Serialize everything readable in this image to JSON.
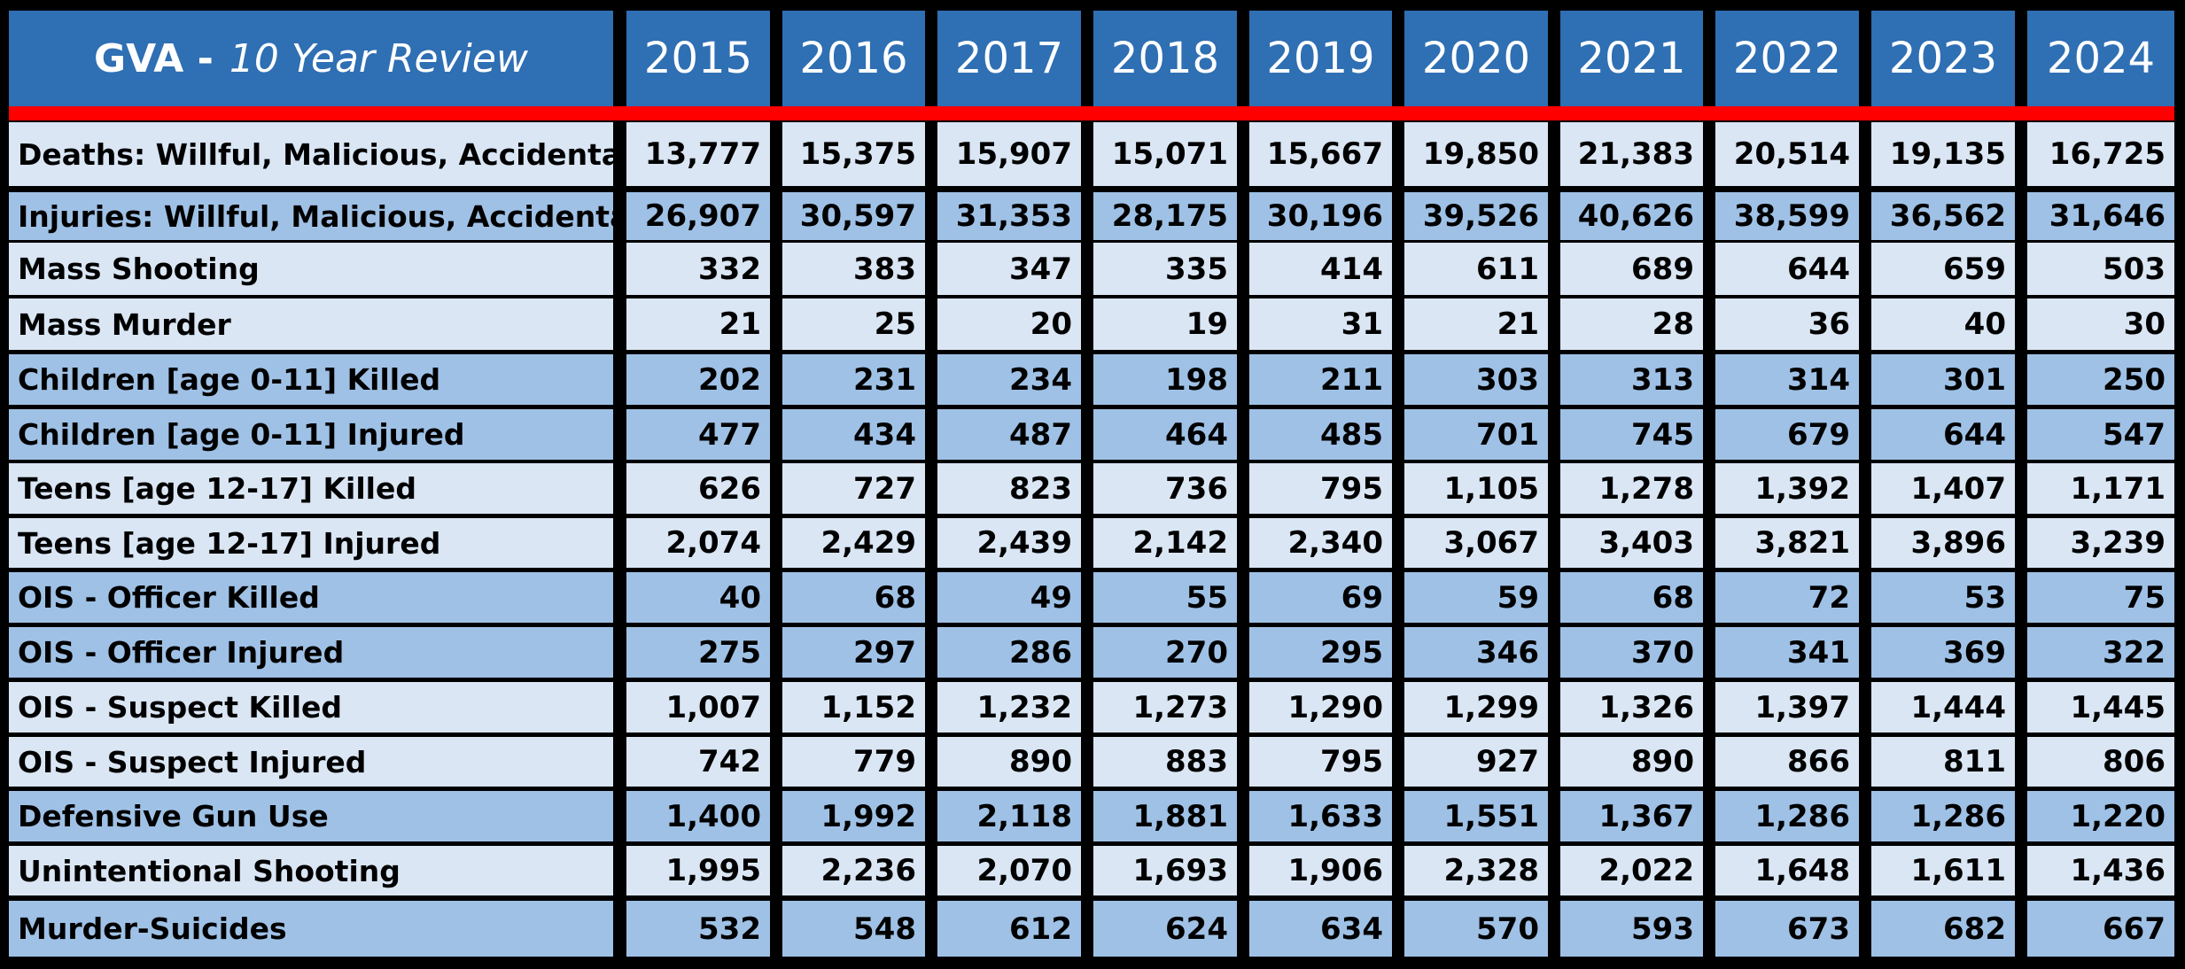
{
  "chart_data": {
    "type": "table",
    "title_bold": "GVA -",
    "title_italic": "10 Year Review",
    "columns": [
      "2015",
      "2016",
      "2017",
      "2018",
      "2019",
      "2020",
      "2021",
      "2022",
      "2023",
      "2024"
    ],
    "rows": [
      {
        "label": "Deaths:  Willful, Malicious, Accidental",
        "shade": "light",
        "values": [
          "13,777",
          "15,375",
          "15,907",
          "15,071",
          "15,667",
          "19,850",
          "21,383",
          "20,514",
          "19,135",
          "16,725"
        ]
      },
      {
        "label": "Injuries: Willful, Malicious, Accidental",
        "shade": "dark",
        "values": [
          "26,907",
          "30,597",
          "31,353",
          "28,175",
          "30,196",
          "39,526",
          "40,626",
          "38,599",
          "36,562",
          "31,646"
        ]
      },
      {
        "label": "Mass Shooting",
        "shade": "light",
        "values": [
          "332",
          "383",
          "347",
          "335",
          "414",
          "611",
          "689",
          "644",
          "659",
          "503"
        ]
      },
      {
        "label": "Mass Murder",
        "shade": "light",
        "values": [
          "21",
          "25",
          "20",
          "19",
          "31",
          "21",
          "28",
          "36",
          "40",
          "30"
        ]
      },
      {
        "label": "Children [age 0-11] Killed",
        "shade": "dark",
        "values": [
          "202",
          "231",
          "234",
          "198",
          "211",
          "303",
          "313",
          "314",
          "301",
          "250"
        ]
      },
      {
        "label": "Children [age 0-11] Injured",
        "shade": "dark",
        "values": [
          "477",
          "434",
          "487",
          "464",
          "485",
          "701",
          "745",
          "679",
          "644",
          "547"
        ]
      },
      {
        "label": "Teens [age 12-17] Killed",
        "shade": "light",
        "values": [
          "626",
          "727",
          "823",
          "736",
          "795",
          "1,105",
          "1,278",
          "1,392",
          "1,407",
          "1,171"
        ]
      },
      {
        "label": "Teens [age 12-17] Injured",
        "shade": "light",
        "values": [
          "2,074",
          "2,429",
          "2,439",
          "2,142",
          "2,340",
          "3,067",
          "3,403",
          "3,821",
          "3,896",
          "3,239"
        ]
      },
      {
        "label": "OIS - Officer Killed",
        "shade": "dark",
        "values": [
          "40",
          "68",
          "49",
          "55",
          "69",
          "59",
          "68",
          "72",
          "53",
          "75"
        ]
      },
      {
        "label": "OIS - Officer Injured",
        "shade": "dark",
        "values": [
          "275",
          "297",
          "286",
          "270",
          "295",
          "346",
          "370",
          "341",
          "369",
          "322"
        ]
      },
      {
        "label": "OIS - Suspect Killed",
        "shade": "light",
        "values": [
          "1,007",
          "1,152",
          "1,232",
          "1,273",
          "1,290",
          "1,299",
          "1,326",
          "1,397",
          "1,444",
          "1,445"
        ]
      },
      {
        "label": "OIS - Suspect Injured",
        "shade": "light",
        "values": [
          "742",
          "779",
          "890",
          "883",
          "795",
          "927",
          "890",
          "866",
          "811",
          "806"
        ]
      },
      {
        "label": "Defensive Gun Use",
        "shade": "dark",
        "values": [
          "1,400",
          "1,992",
          "2,118",
          "1,881",
          "1,633",
          "1,551",
          "1,367",
          "1,286",
          "1,286",
          "1,220"
        ]
      },
      {
        "label": "Unintentional Shooting",
        "shade": "light",
        "values": [
          "1,995",
          "2,236",
          "2,070",
          "1,693",
          "1,906",
          "2,328",
          "2,022",
          "1,648",
          "1,611",
          "1,436"
        ]
      },
      {
        "label": "Murder-Suicides",
        "shade": "dark",
        "values": [
          "532",
          "548",
          "612",
          "624",
          "634",
          "570",
          "593",
          "673",
          "682",
          "667"
        ]
      }
    ]
  },
  "colors": {
    "header": "#2f6fb3",
    "accent_bar": "#ff0000",
    "row_light": "#dae6f4",
    "row_dark": "#9fc1e6",
    "background": "#000000"
  }
}
